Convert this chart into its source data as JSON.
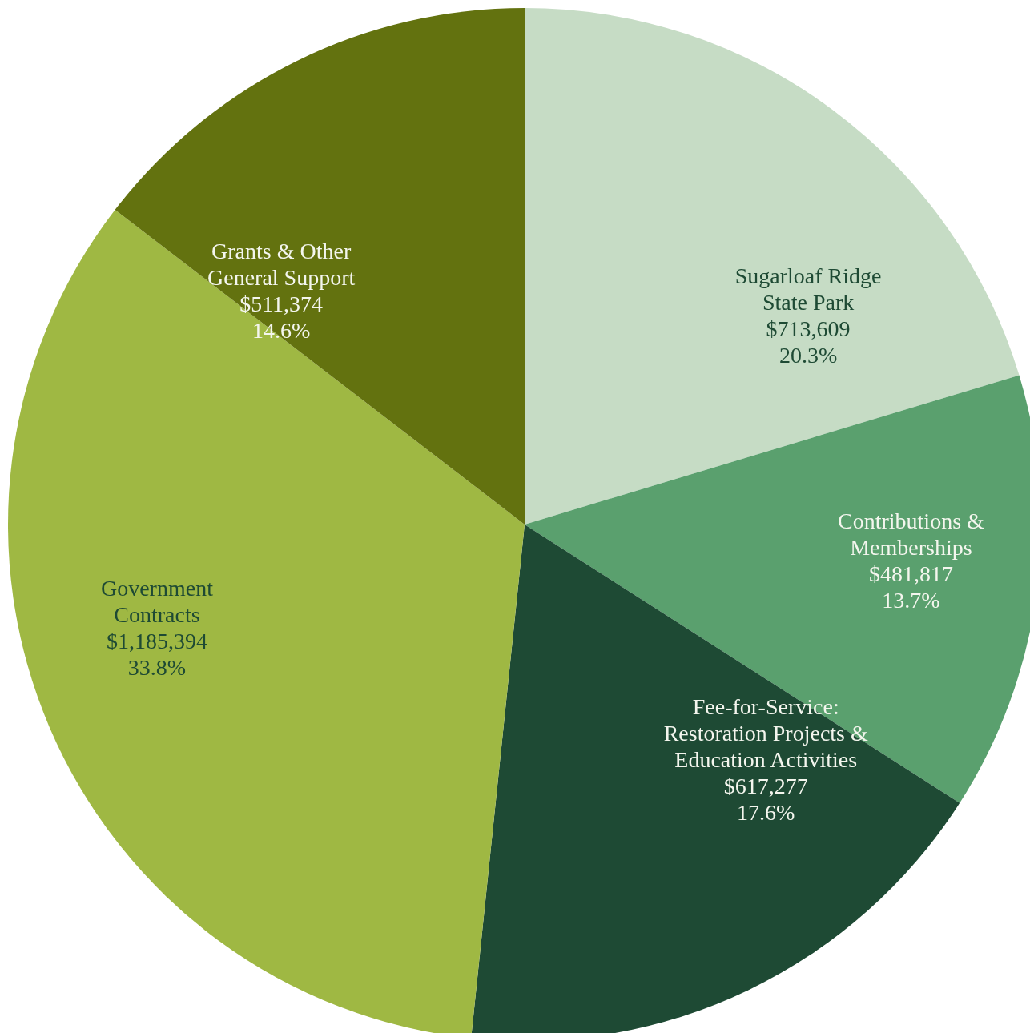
{
  "chart_data": {
    "type": "pie",
    "categories": [
      "Sugarloaf Ridge\nState Park",
      "Contributions &\nMemberships",
      "Fee-for-Service:\nRestoration Projects &\nEducation Activities",
      "Government\nContracts",
      "Grants & Other\nGeneral Support"
    ],
    "values": [
      713609,
      481817,
      617277,
      1185394,
      511374
    ],
    "value_labels": [
      "$713,609\n20.3%",
      "$481,817\n13.7%",
      "$617,277\n17.6%",
      "$1,185,394\n33.8%",
      "$511,374\n14.6%"
    ],
    "colors": [
      "#c6dcc5",
      "#5aa06e",
      "#1e4a34",
      "#9fb843",
      "#63720f"
    ]
  }
}
